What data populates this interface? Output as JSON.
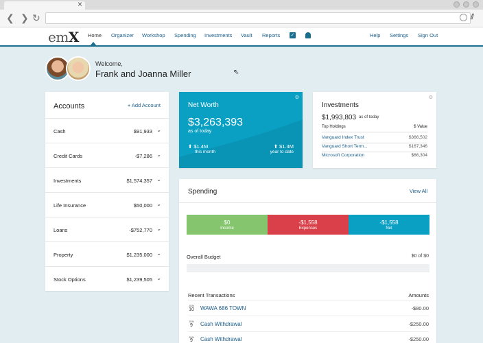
{
  "nav": {
    "logo_left": "em",
    "logo_right": "X",
    "items": [
      "Home",
      "Organizer",
      "Workshop",
      "Spending",
      "Investments",
      "Vault",
      "Reports"
    ],
    "right_items": [
      "Help",
      "Settings",
      "Sign Out"
    ]
  },
  "welcome": {
    "greeting": "Welcome,",
    "name": "Frank and Joanna Miller"
  },
  "accounts": {
    "title": "Accounts",
    "add_label": "+ Add Account",
    "rows": [
      {
        "label": "Cash",
        "value": "$91,933"
      },
      {
        "label": "Credit Cards",
        "value": "-$7,286"
      },
      {
        "label": "Investments",
        "value": "$1,574,357"
      },
      {
        "label": "Life Insurance",
        "value": "$50,000"
      },
      {
        "label": "Loans",
        "value": "-$752,770"
      },
      {
        "label": "Property",
        "value": "$1,235,000"
      },
      {
        "label": "Stock Options",
        "value": "$1,239,505"
      }
    ]
  },
  "net_worth": {
    "title": "Net Worth",
    "value": "$3,263,393",
    "as_of": "as of today",
    "month_value": "⬆ $1.4M",
    "month_label": "this month",
    "year_value": "⬆ $1.4M",
    "year_label": "year to date"
  },
  "investments": {
    "title": "Investments",
    "value": "$1,993,803",
    "as_of": "as of today",
    "holdings_header": "Top Holdings",
    "value_header": "$ Value",
    "rows": [
      {
        "name": "Vanguard Index Trust",
        "value": "$366,502"
      },
      {
        "name": "Vanguard Short Term...",
        "value": "$167,346"
      },
      {
        "name": "Microsoft Corporation",
        "value": "$66,304"
      }
    ]
  },
  "spending": {
    "title": "Spending",
    "view_all": "View All",
    "income": {
      "value": "$0",
      "label": "Income"
    },
    "expenses": {
      "value": "-$1,558",
      "label": "Expenses"
    },
    "net": {
      "value": "-$1,558",
      "label": "Net"
    },
    "budget_label": "Overall Budget",
    "budget_value": "$0 of $0",
    "budget_fraction": 0,
    "recent_title": "Recent Transactions",
    "amounts_header": "Amounts",
    "transactions": [
      {
        "month": "JUN",
        "day": "10",
        "desc": "WAWA 686 TOWN",
        "amount": "-$80.00"
      },
      {
        "month": "JUN",
        "day": "9",
        "desc": "Cash Withdrawal",
        "amount": "-$250.00"
      },
      {
        "month": "JUN",
        "day": "9",
        "desc": "Cash Withdrawal",
        "amount": "-$250.00"
      }
    ]
  },
  "colors": {
    "accent": "#0aa0c4",
    "income": "#84c56e",
    "expense": "#d9404a",
    "nav": "#1a6f8e"
  }
}
